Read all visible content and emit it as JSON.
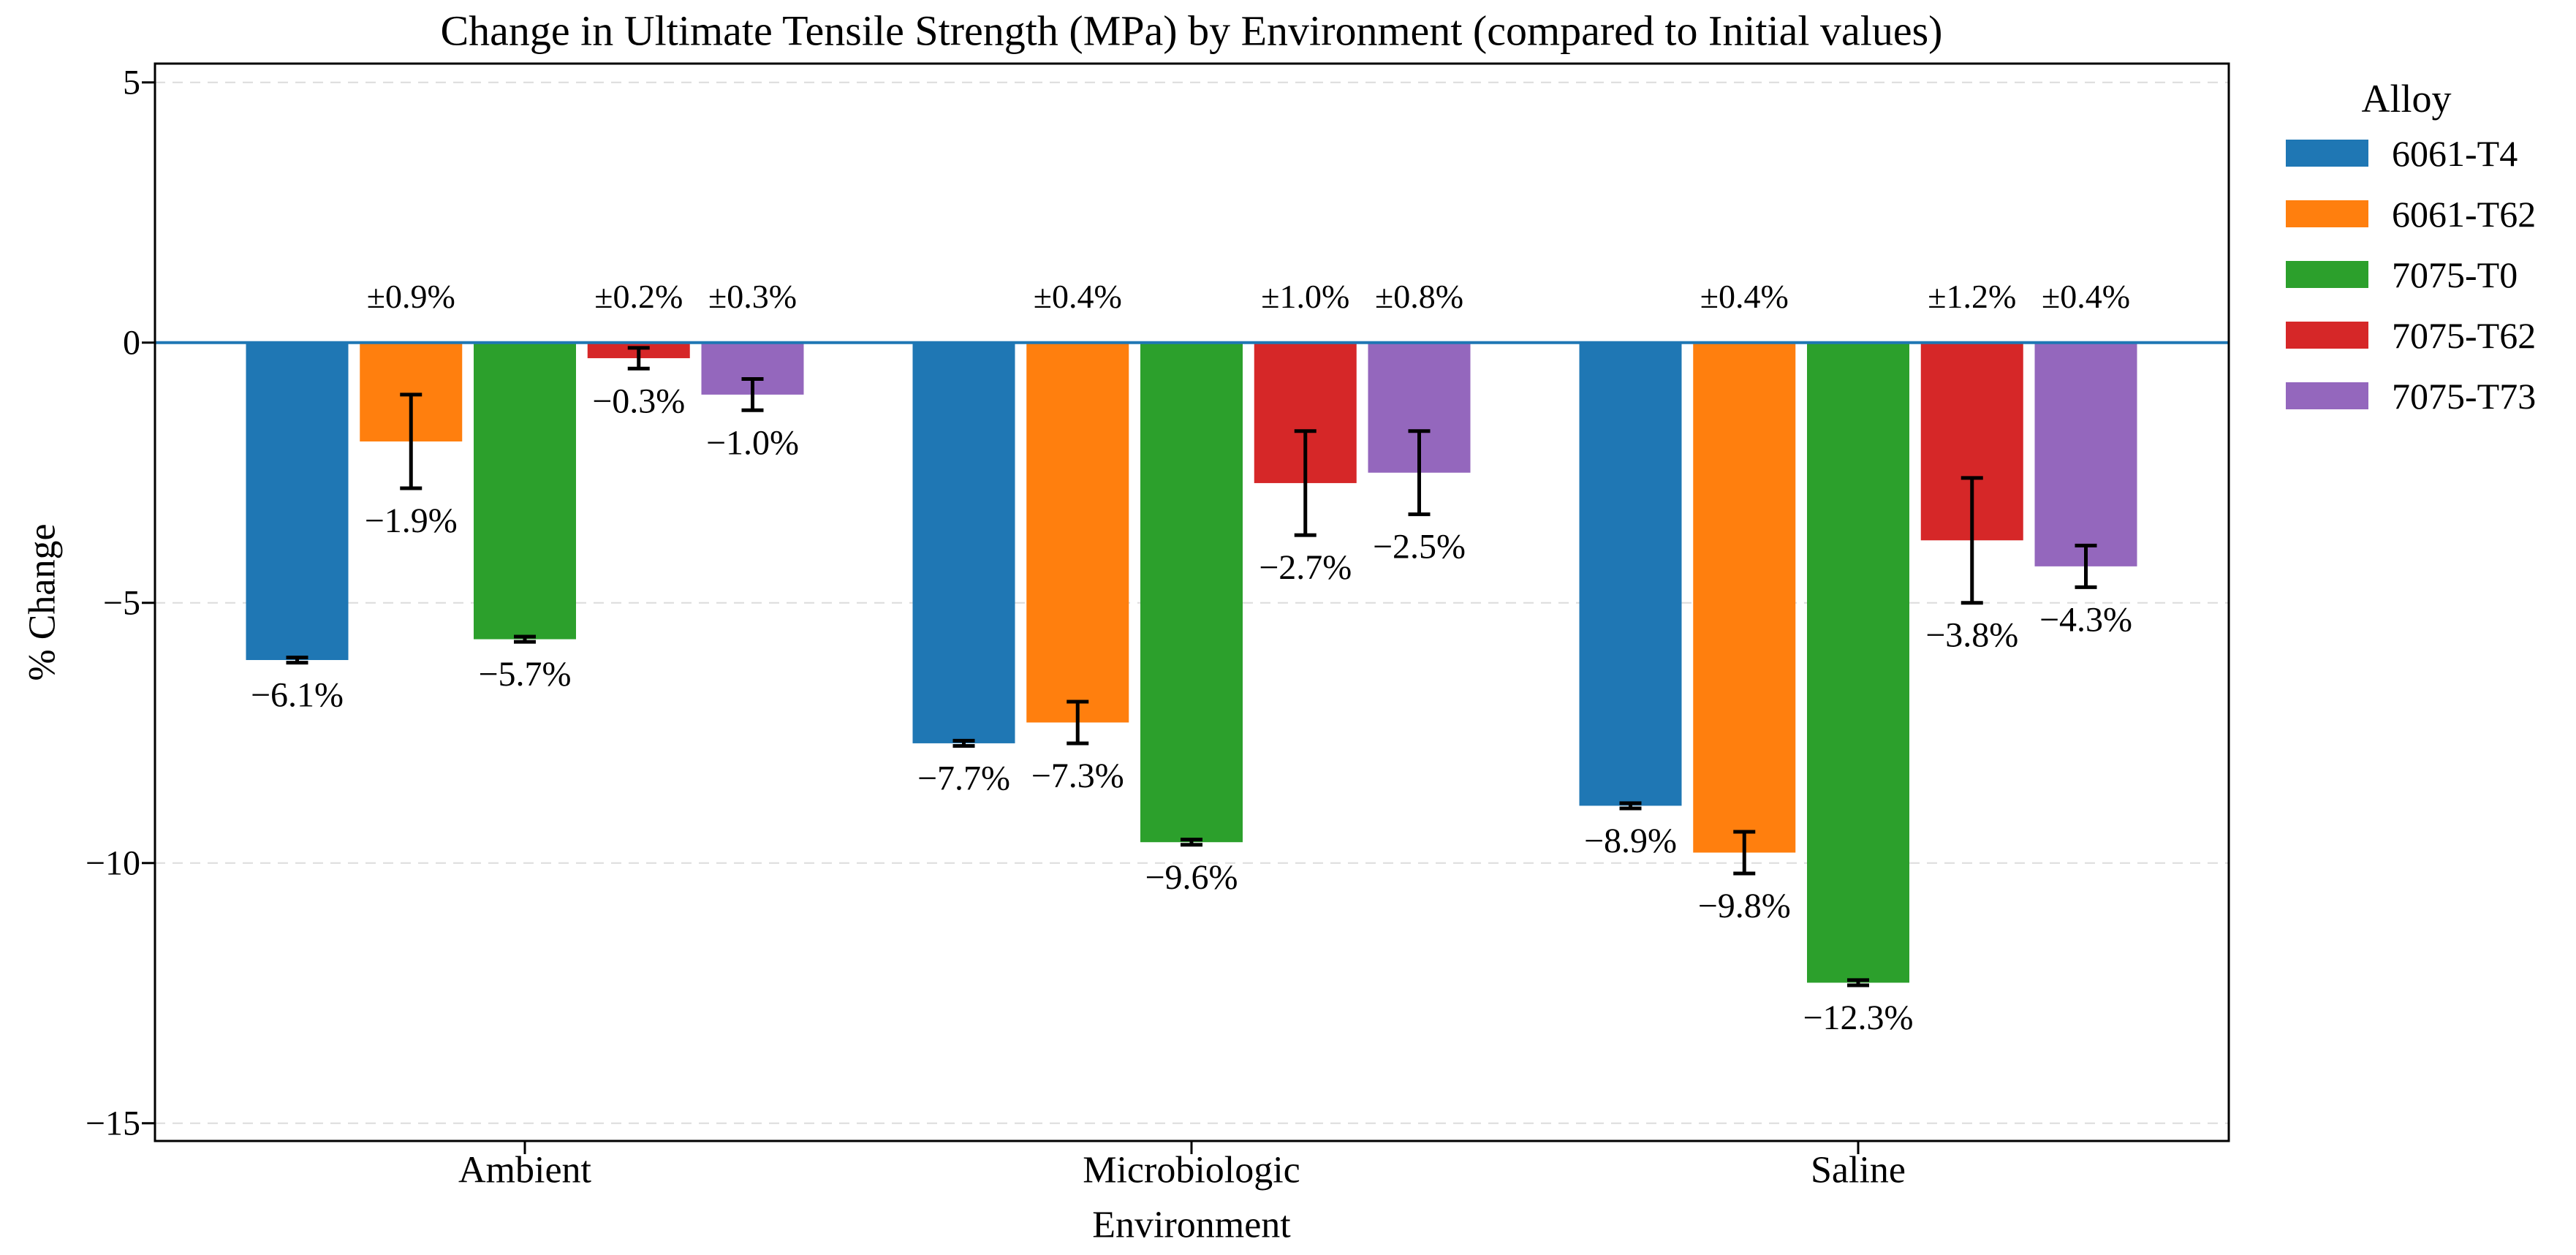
{
  "figure": {
    "background": "#ffffff"
  },
  "chart_data": {
    "type": "bar",
    "title": "Change in Ultimate Tensile Strength (MPa) by Environment (compared to Initial values)",
    "xlabel": "Environment",
    "ylabel": "% Change",
    "categories": [
      "Ambient",
      "Microbiologic",
      "Saline"
    ],
    "series": [
      {
        "name": "6061-T4",
        "color": "#1f77b4",
        "values": [
          -6.1,
          -7.7,
          -8.9
        ],
        "errors": [
          0.05,
          0.05,
          0.05
        ],
        "value_labels": [
          "−6.1%",
          "−7.7%",
          "−8.9%"
        ],
        "error_labels": [
          "",
          "",
          ""
        ]
      },
      {
        "name": "6061-T62",
        "color": "#ff7f0e",
        "values": [
          -1.9,
          -7.3,
          -9.8
        ],
        "errors": [
          0.9,
          0.4,
          0.4
        ],
        "value_labels": [
          "−1.9%",
          "−7.3%",
          "−9.8%"
        ],
        "error_labels": [
          "±0.9%",
          "±0.4%",
          "±0.4%"
        ]
      },
      {
        "name": "7075-T0",
        "color": "#2ca02c",
        "values": [
          -5.7,
          -9.6,
          -12.3
        ],
        "errors": [
          0.05,
          0.05,
          0.05
        ],
        "value_labels": [
          "−5.7%",
          "−9.6%",
          "−12.3%"
        ],
        "error_labels": [
          "",
          "",
          ""
        ]
      },
      {
        "name": "7075-T62",
        "color": "#d62728",
        "values": [
          -0.3,
          -2.7,
          -3.8
        ],
        "errors": [
          0.2,
          1.0,
          1.2
        ],
        "value_labels": [
          "−0.3%",
          "−2.7%",
          "−3.8%"
        ],
        "error_labels": [
          "±0.2%",
          "±1.0%",
          "±1.2%"
        ]
      },
      {
        "name": "7075-T73",
        "color": "#9467bd",
        "values": [
          -1.0,
          -2.5,
          -4.3
        ],
        "errors": [
          0.3,
          0.8,
          0.4
        ],
        "value_labels": [
          "−1.0%",
          "−2.5%",
          "−4.3%"
        ],
        "error_labels": [
          "±0.3%",
          "±0.8%",
          "±0.4%"
        ]
      }
    ],
    "yticks": [
      5,
      0,
      -5,
      -10,
      -15
    ],
    "ytick_labels": [
      "5",
      "0",
      "−5",
      "−10",
      "−15"
    ],
    "ylim": [
      -15.34,
      5.37
    ],
    "grid": "horizontal-dashed",
    "legend_title": "Alloy",
    "legend_position": "right",
    "zero_line_color": "#1f77b4",
    "error_bar_color": "#000000"
  }
}
